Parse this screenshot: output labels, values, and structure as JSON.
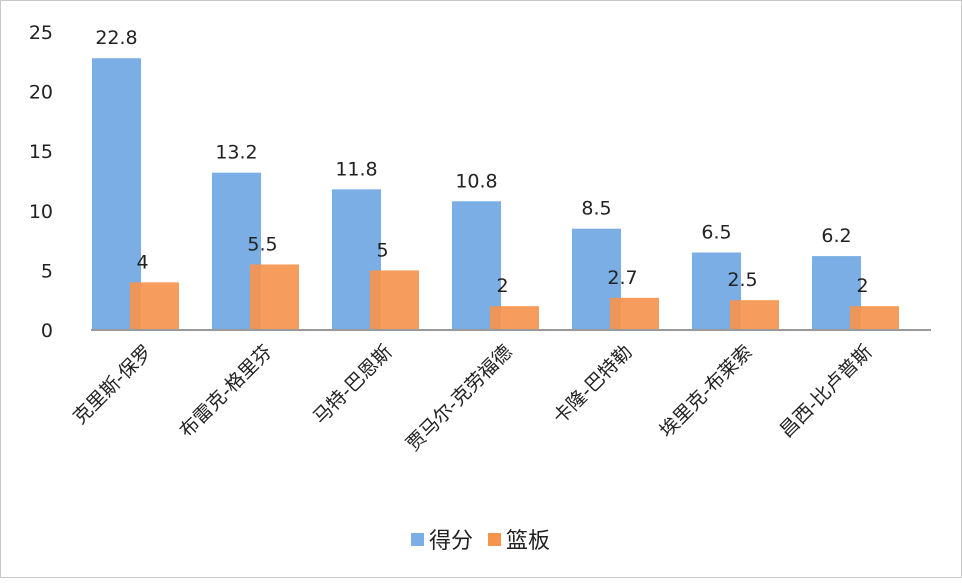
{
  "chart_data": {
    "type": "bar",
    "title": "",
    "xlabel": "",
    "ylabel": "",
    "ylim": [
      0,
      25
    ],
    "yticks": [
      0,
      5,
      10,
      15,
      20,
      25
    ],
    "grid": false,
    "legend_placement": "bottom",
    "categories": [
      "克里斯-保罗",
      "布雷克-格里芬",
      "马特-巴恩斯",
      "贾马尔-克劳福德",
      "卡隆-巴特勒",
      "埃里克-布莱索",
      "昌西-比卢普斯"
    ],
    "series": [
      {
        "name": "得分",
        "color": "#7aaee4",
        "values": [
          22.8,
          13.2,
          11.8,
          10.8,
          8.5,
          6.5,
          6.2
        ]
      },
      {
        "name": "篮板",
        "color": "#f5944f",
        "values": [
          4,
          5.5,
          5,
          2,
          2.7,
          2.5,
          2
        ]
      }
    ]
  }
}
